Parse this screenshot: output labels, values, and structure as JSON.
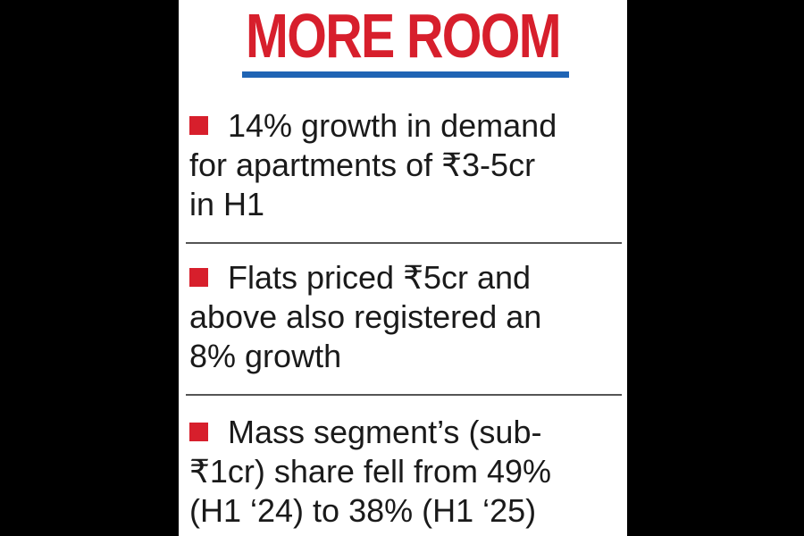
{
  "headline": "MORE ROOM",
  "colors": {
    "headline": "#d71f2c",
    "underline": "#1f64b4",
    "bullet": "#d71f2c",
    "text": "#1a1a1a",
    "background": "#ffffff",
    "letterbox": "#000000"
  },
  "bullet_icon": "red-square",
  "items": [
    {
      "line1": "14% growth in demand",
      "line2": "for apartments of ₹3-5cr",
      "line3": "in H1"
    },
    {
      "line1": "Flats priced ₹5cr and",
      "line2": "above also registered an",
      "line3": "8% growth"
    },
    {
      "line1": "Mass segment’s (sub-",
      "line2": "₹1cr) share fell from 49%",
      "line3": "(H1 ‘24) to 38% (H1 ‘25)"
    }
  ]
}
